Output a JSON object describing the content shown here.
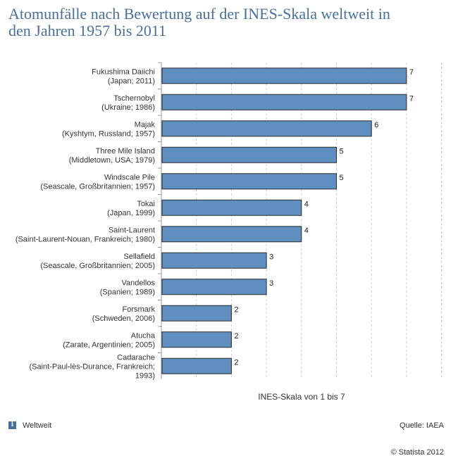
{
  "chart_data": {
    "type": "bar",
    "orientation": "horizontal",
    "title": "Atomunfälle nach Bewertung auf der INES-Skala weltweit in den Jahren 1957 bis 2011",
    "xlabel": "INES-Skala von 1 bis 7",
    "ylabel": "",
    "xlim": [
      0,
      8
    ],
    "grid": true,
    "categories": [
      [
        "Fukushima Daiichi",
        "(Japan; 2011)"
      ],
      [
        "Tschernobyl",
        "(Ukraine; 1986)"
      ],
      [
        "Majak",
        "(Kyshtym, Russland; 1957)"
      ],
      [
        "Three Mile Island",
        "(Middletown, USA; 1979)"
      ],
      [
        "Windscale Pile",
        "(Seascale, Großbritannien; 1957)"
      ],
      [
        "Tokai",
        "(Japan, 1999)"
      ],
      [
        "Saint-Laurent",
        "(Saint-Laurent-Nouan, Frankreich; 1980)"
      ],
      [
        "Sellafield",
        "(Seascale, Großbritannien; 2005)"
      ],
      [
        "Vandellos",
        "(Spanien; 1989)"
      ],
      [
        "Forsmark",
        "(Schweden, 2006)"
      ],
      [
        "Atucha",
        "(Zarate, Argentinien; 2005)"
      ],
      [
        "Cadarache",
        "(Saint-Paul-lès-Durance, Frankreich;",
        "1993)"
      ]
    ],
    "values": [
      7,
      7,
      6,
      5,
      5,
      4,
      4,
      3,
      3,
      2,
      2,
      2
    ],
    "colors": {
      "bar": "#5f8fbf",
      "bar_border": "#2b2b2b",
      "grid": "#cccccc"
    }
  },
  "title_line1": "Atomunfälle nach Bewertung auf der INES-Skala weltweit in",
  "title_line2": "den Jahren 1957 bis 2011",
  "footer": {
    "region_icon": "info-icon",
    "region_icon_glyph": "i",
    "region": "Weltweit",
    "source": "Quelle: IAEA",
    "copyright": "© Statista 2012"
  }
}
